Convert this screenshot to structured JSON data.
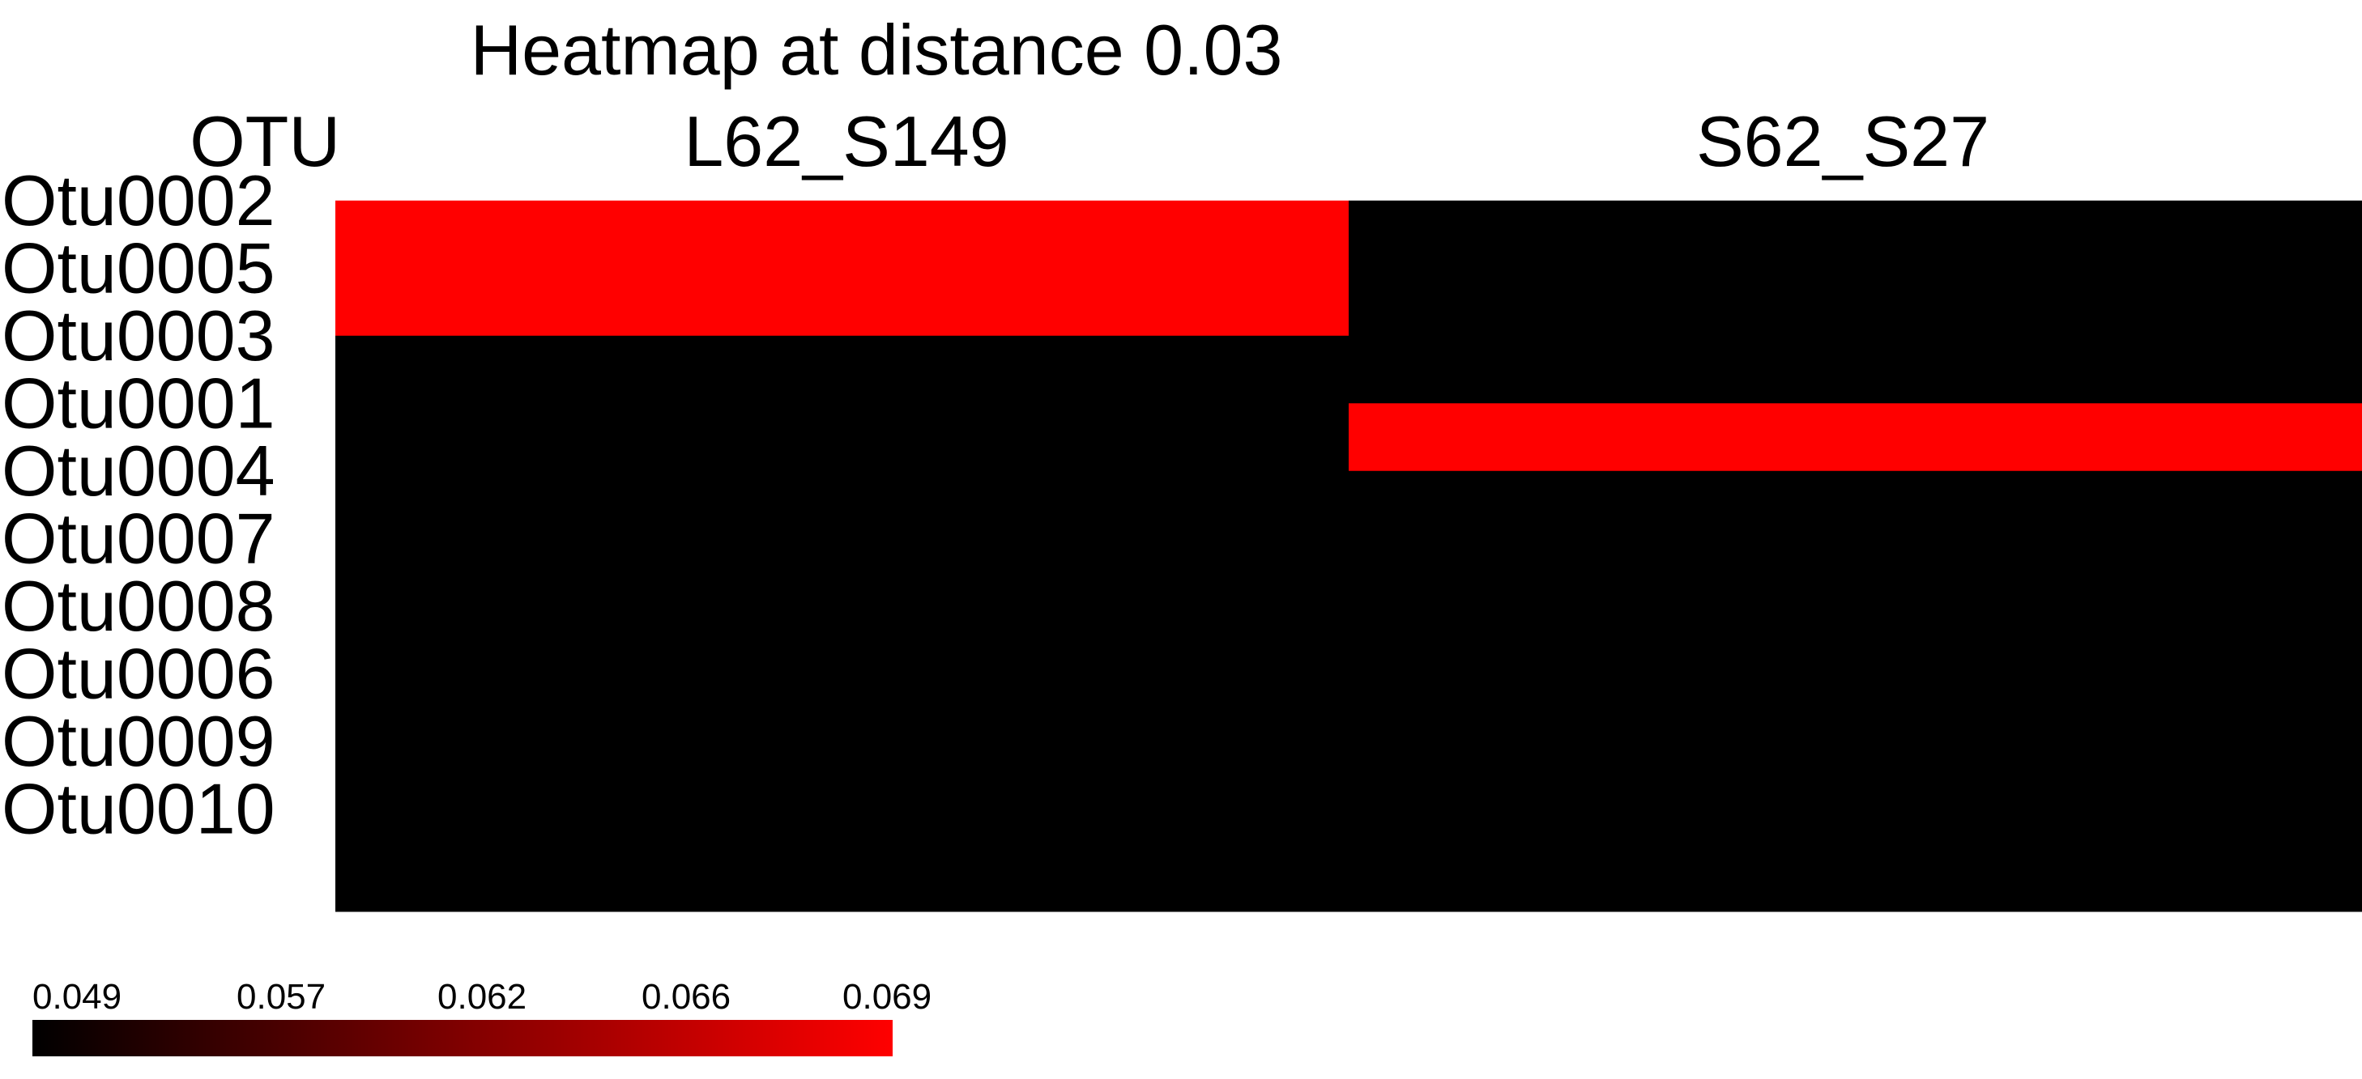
{
  "chart_data": {
    "type": "heatmap",
    "title": "Heatmap at distance 0.03",
    "row_header": "OTU",
    "rows": [
      "Otu0002",
      "Otu0005",
      "Otu0003",
      "Otu0001",
      "Otu0004",
      "Otu0007",
      "Otu0008",
      "Otu0006",
      "Otu0009",
      "Otu0010"
    ],
    "columns": [
      "L62_S149",
      "S62_S27"
    ],
    "values": [
      [
        0.069,
        0.049
      ],
      [
        0.069,
        0.049
      ],
      [
        0.049,
        0.049
      ],
      [
        0.049,
        0.069
      ],
      [
        0.049,
        0.049
      ],
      [
        0.049,
        0.049
      ],
      [
        0.049,
        0.049
      ],
      [
        0.049,
        0.049
      ],
      [
        0.049,
        0.049
      ],
      [
        0.049,
        0.049
      ]
    ],
    "colorbar": {
      "ticks": [
        "0.049",
        "0.057",
        "0.062",
        "0.066",
        "0.069"
      ],
      "min": 0.049,
      "max": 0.069,
      "color_low": "#000000",
      "color_high": "#ff0000"
    }
  }
}
